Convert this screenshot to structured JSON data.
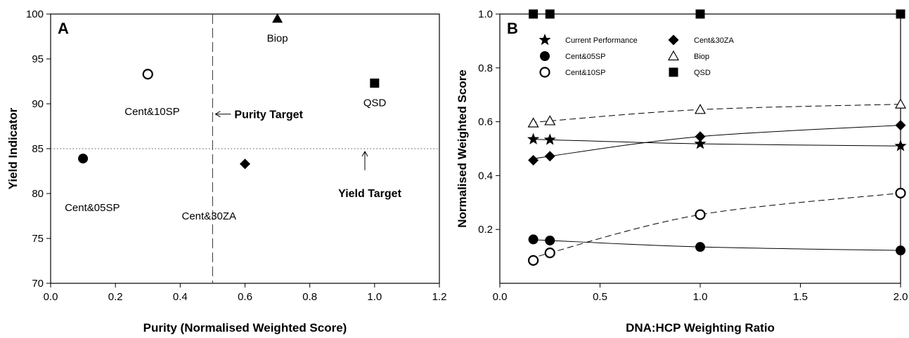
{
  "chart_data": [
    {
      "panel": "A",
      "type": "scatter",
      "xlabel": "Purity (Normalised Weighted Score)",
      "ylabel": "Yield Indicator",
      "xlim": [
        0.0,
        1.2
      ],
      "ylim": [
        70,
        100
      ],
      "xticks": [
        "0.0",
        "0.2",
        "0.4",
        "0.6",
        "0.8",
        "1.0",
        "1.2"
      ],
      "yticks": [
        "70",
        "75",
        "80",
        "85",
        "90",
        "95",
        "100"
      ],
      "grid": false,
      "points": [
        {
          "name": "Cent&05SP",
          "x": 0.1,
          "y": 83.9,
          "marker": "filled-circle"
        },
        {
          "name": "Cent&10SP",
          "x": 0.3,
          "y": 93.3,
          "marker": "open-circle"
        },
        {
          "name": "Cent&30ZA",
          "x": 0.6,
          "y": 83.3,
          "marker": "filled-diamond"
        },
        {
          "name": "Biop",
          "x": 0.7,
          "y": 99.5,
          "marker": "filled-triangle"
        },
        {
          "name": "QSD",
          "x": 1.0,
          "y": 92.3,
          "marker": "filled-square"
        }
      ],
      "reference_lines": [
        {
          "orientation": "vertical",
          "value": 0.5,
          "style": "dashed",
          "label": "Purity Target"
        },
        {
          "orientation": "horizontal",
          "value": 85,
          "style": "dotted",
          "label": "Yield Target"
        }
      ]
    },
    {
      "panel": "B",
      "type": "line",
      "xlabel": "DNA:HCP Weighting Ratio",
      "ylabel": "Normalised Weighted Score",
      "xlim": [
        0.0,
        2.0
      ],
      "ylim": [
        0.0,
        1.0
      ],
      "xticks": [
        "0.0",
        "0.5",
        "1.0",
        "1.5",
        "2.0"
      ],
      "yticks": [
        "0.2",
        "0.4",
        "0.6",
        "0.8",
        "1.0"
      ],
      "grid": false,
      "legend_placement": "top",
      "x": [
        0.167,
        0.25,
        1.0,
        2.0
      ],
      "series": [
        {
          "name": "Current Performance",
          "marker": "star",
          "line": "solid",
          "values": [
            0.535,
            0.533,
            0.518,
            0.51
          ]
        },
        {
          "name": "Cent&05SP",
          "marker": "filled-circle",
          "line": "solid",
          "values": [
            0.163,
            0.159,
            0.135,
            0.122
          ]
        },
        {
          "name": "Cent&10SP",
          "marker": "open-circle",
          "line": "dashed",
          "values": [
            0.085,
            0.113,
            0.255,
            0.335
          ]
        },
        {
          "name": "Cent&30ZA",
          "marker": "filled-diamond",
          "line": "solid",
          "values": [
            0.457,
            0.472,
            0.545,
            0.587
          ]
        },
        {
          "name": "Biop",
          "marker": "open-triangle",
          "line": "dashed",
          "values": [
            0.595,
            0.603,
            0.645,
            0.665
          ]
        },
        {
          "name": "QSD",
          "marker": "filled-square",
          "line": "solid",
          "values": [
            1.0,
            1.0,
            1.0,
            1.0
          ]
        }
      ]
    }
  ]
}
